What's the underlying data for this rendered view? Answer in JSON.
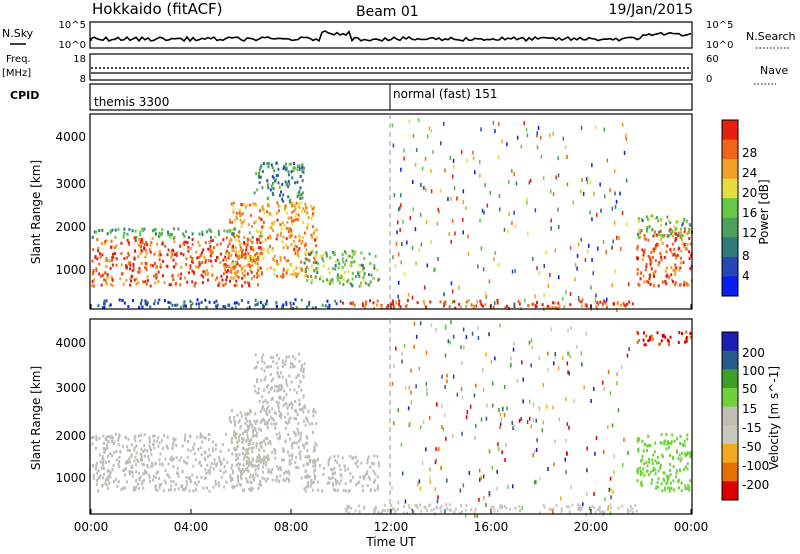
{
  "header": {
    "title": "Hokkaido (fitACF)",
    "beam": "Beam 01",
    "date": "19/Jan/2015"
  },
  "top_panels": {
    "nsky_label": "N.Sky",
    "nsky_ticks": [
      "10^5",
      "10^0"
    ],
    "nsearch_label": "N.Search",
    "nsearch_ticks": [
      "10^5",
      "10^0"
    ],
    "freq_label": "Freq.",
    "freq_unit": "[MHz]",
    "freq_ticks": [
      "18",
      "8"
    ],
    "nave_label": "Nave",
    "nave_ticks": [
      "60",
      "0"
    ],
    "cpid_label": "CPID",
    "cpid_segments": [
      {
        "label": "themis 3300",
        "start_hour": 0,
        "end_hour": 12
      },
      {
        "label": "normal (fast) 151",
        "start_hour": 12,
        "end_hour": 24
      }
    ]
  },
  "colors": {
    "power": [
      "#0a1ef0",
      "#2846b4",
      "#2d7a7a",
      "#4ca25a",
      "#64c846",
      "#e6dc3c",
      "#f0a028",
      "#f06418",
      "#e61e10"
    ],
    "velocity": [
      "#dc0000",
      "#e66e00",
      "#f0aa1e",
      "#c8c8c0",
      "#bebeb4",
      "#6ed23c",
      "#3ca028",
      "#285a8c",
      "#1e1eb4"
    ],
    "axis": "#000000"
  },
  "chart_data": [
    {
      "type": "heatmap",
      "name": "power",
      "xlabel": "",
      "ylabel": "Slant Range [km]",
      "xlim_hours": [
        0,
        24
      ],
      "ylim": [
        200,
        4600
      ],
      "yticks": [
        "1000",
        "2000",
        "3000",
        "4000"
      ],
      "xticks": [
        "00:00",
        "04:00",
        "08:00",
        "12:00",
        "16:00",
        "20:00",
        "00:00"
      ],
      "colorbar_label": "Power [dB]",
      "colorbar_ticks": [
        "4",
        "8",
        "12",
        "16",
        "20",
        "24",
        "28"
      ],
      "colorbar_range": [
        0,
        30
      ],
      "regions": [
        {
          "t0": 0.0,
          "t1": 6.8,
          "r0": 700,
          "r1": 1800,
          "value": 26
        },
        {
          "t0": 0.0,
          "t1": 6.8,
          "r0": 1800,
          "r1": 2000,
          "value": 12
        },
        {
          "t0": 5.5,
          "t1": 9.0,
          "r0": 900,
          "r1": 2600,
          "value": 22
        },
        {
          "t0": 6.5,
          "t1": 8.5,
          "r0": 2600,
          "r1": 3500,
          "value": 10
        },
        {
          "t0": 8.5,
          "t1": 11.5,
          "r0": 700,
          "r1": 1500,
          "value": 14
        },
        {
          "t0": 10.0,
          "t1": 21.8,
          "r0": 200,
          "r1": 380,
          "value": 26
        },
        {
          "t0": 0.0,
          "t1": 10.0,
          "r0": 200,
          "r1": 400,
          "value": 6
        },
        {
          "t0": 21.8,
          "t1": 24.0,
          "r0": 700,
          "r1": 2000,
          "value": 26
        },
        {
          "t0": 21.8,
          "t1": 24.0,
          "r0": 1800,
          "r1": 2300,
          "value": 14
        }
      ]
    },
    {
      "type": "heatmap",
      "name": "velocity",
      "xlabel": "Time UT",
      "ylabel": "Slant Range [km]",
      "xlim_hours": [
        0,
        24
      ],
      "ylim": [
        200,
        4600
      ],
      "yticks": [
        "1000",
        "2000",
        "3000",
        "4000"
      ],
      "xticks": [
        "00:00",
        "04:00",
        "08:00",
        "12:00",
        "16:00",
        "20:00",
        "00:00"
      ],
      "colorbar_label": "Velocity [m s^-1]",
      "colorbar_ticks": [
        "200",
        "100",
        "50",
        "15",
        "-15",
        "-50",
        "-100",
        "-200"
      ],
      "colorbar_range": [
        -250,
        250
      ],
      "regions": [
        {
          "t0": 0.0,
          "t1": 6.8,
          "r0": 700,
          "r1": 2000,
          "value": 0
        },
        {
          "t0": 5.5,
          "t1": 9.0,
          "r0": 900,
          "r1": 2600,
          "value": 0
        },
        {
          "t0": 6.5,
          "t1": 8.5,
          "r0": 2600,
          "r1": 3800,
          "value": 0
        },
        {
          "t0": 8.5,
          "t1": 11.5,
          "r0": 700,
          "r1": 1500,
          "value": 0
        },
        {
          "t0": 10.0,
          "t1": 21.8,
          "r0": 200,
          "r1": 400,
          "value": -40
        },
        {
          "t0": 21.8,
          "t1": 24.0,
          "r0": 700,
          "r1": 2000,
          "value": 60
        },
        {
          "t0": 21.8,
          "t1": 24.0,
          "r0": 4000,
          "r1": 4300,
          "value": -200
        }
      ]
    }
  ]
}
